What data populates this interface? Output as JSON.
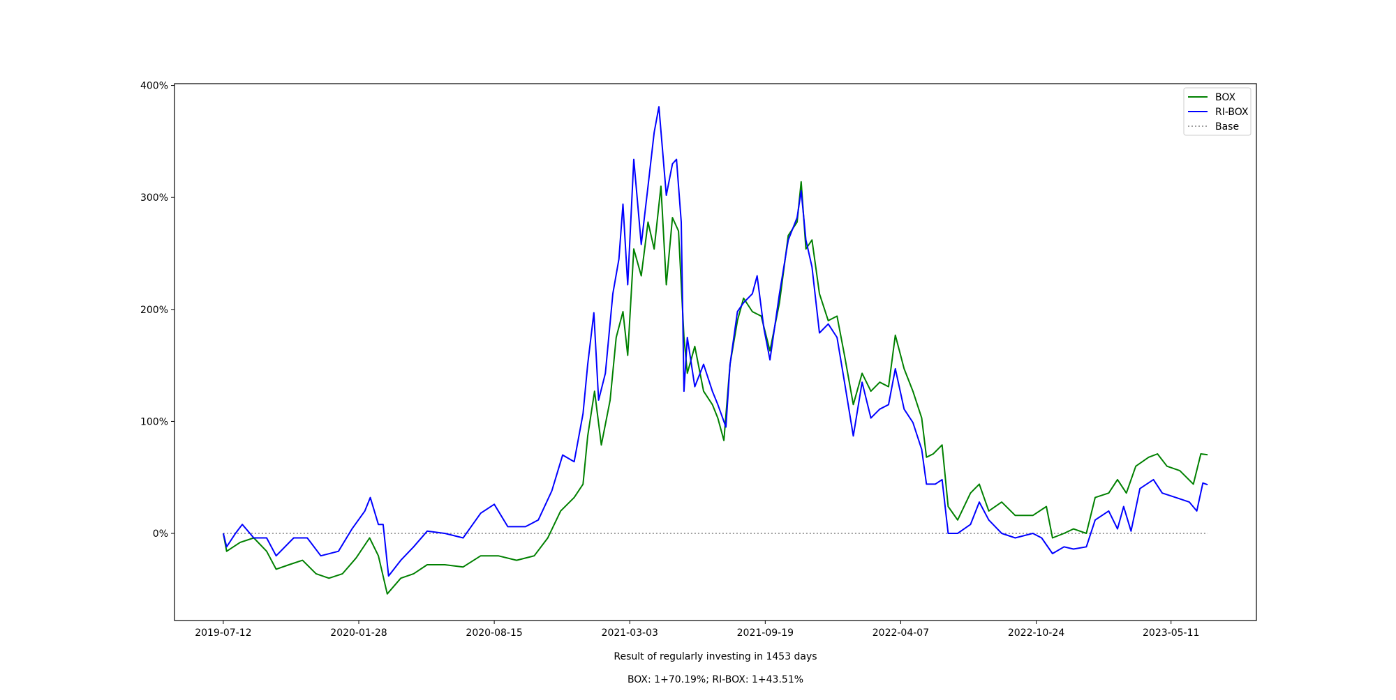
{
  "chart_data": {
    "type": "line",
    "title": "",
    "xlabel": "Result of regularly investing in 1453 days",
    "subtitle": "BOX: 1+70.19%; RI-BOX: 1+43.51%",
    "ylabel": "",
    "x_unit": "days since 2019-07-12",
    "xlim": [
      -72,
      1525
    ],
    "ylim": [
      -77.8,
      401.6
    ],
    "grid": false,
    "legend_position": "top-right",
    "x_ticks": [
      {
        "day": 0,
        "label": "2019-07-12"
      },
      {
        "day": 200,
        "label": "2020-01-28"
      },
      {
        "day": 400,
        "label": "2020-08-15"
      },
      {
        "day": 600,
        "label": "2021-03-03"
      },
      {
        "day": 800,
        "label": "2021-09-19"
      },
      {
        "day": 1000,
        "label": "2022-04-07"
      },
      {
        "day": 1200,
        "label": "2022-10-24"
      },
      {
        "day": 1399,
        "label": "2023-05-11"
      }
    ],
    "y_ticks": [
      {
        "value": 0,
        "label": "0%"
      },
      {
        "value": 100,
        "label": "100%"
      },
      {
        "value": 200,
        "label": "200%"
      },
      {
        "value": 300,
        "label": "300%"
      },
      {
        "value": 400,
        "label": "400%"
      }
    ],
    "series": [
      {
        "name": "BOX",
        "color": "#008000",
        "style": "solid",
        "points": [
          [
            0,
            0
          ],
          [
            5,
            -16
          ],
          [
            25,
            -8
          ],
          [
            45,
            -4
          ],
          [
            64,
            -16
          ],
          [
            78,
            -32
          ],
          [
            97,
            -28
          ],
          [
            117,
            -24
          ],
          [
            137,
            -36
          ],
          [
            156,
            -40
          ],
          [
            176,
            -36
          ],
          [
            196,
            -22
          ],
          [
            216,
            -4
          ],
          [
            229,
            -20
          ],
          [
            242,
            -54
          ],
          [
            262,
            -40
          ],
          [
            281,
            -36
          ],
          [
            301,
            -28
          ],
          [
            327,
            -28
          ],
          [
            354,
            -30
          ],
          [
            380,
            -20
          ],
          [
            406,
            -20
          ],
          [
            433,
            -24
          ],
          [
            459,
            -20
          ],
          [
            479,
            -4
          ],
          [
            498,
            20
          ],
          [
            518,
            32
          ],
          [
            531,
            44
          ],
          [
            538,
            87
          ],
          [
            548,
            127
          ],
          [
            558,
            79
          ],
          [
            571,
            119
          ],
          [
            580,
            175
          ],
          [
            590,
            198
          ],
          [
            597,
            159
          ],
          [
            606,
            254
          ],
          [
            617,
            230
          ],
          [
            627,
            278
          ],
          [
            636,
            254
          ],
          [
            646,
            310
          ],
          [
            654,
            222
          ],
          [
            663,
            282
          ],
          [
            672,
            270
          ],
          [
            680,
            175
          ],
          [
            685,
            143
          ],
          [
            696,
            167
          ],
          [
            709,
            127
          ],
          [
            722,
            115
          ],
          [
            730,
            103
          ],
          [
            739,
            83
          ],
          [
            748,
            151
          ],
          [
            759,
            190
          ],
          [
            768,
            210
          ],
          [
            781,
            198
          ],
          [
            794,
            194
          ],
          [
            807,
            163
          ],
          [
            821,
            206
          ],
          [
            834,
            266
          ],
          [
            847,
            278
          ],
          [
            853,
            314
          ],
          [
            860,
            254
          ],
          [
            869,
            262
          ],
          [
            880,
            214
          ],
          [
            893,
            190
          ],
          [
            906,
            194
          ],
          [
            917,
            159
          ],
          [
            930,
            115
          ],
          [
            943,
            143
          ],
          [
            956,
            127
          ],
          [
            969,
            135
          ],
          [
            982,
            131
          ],
          [
            992,
            177
          ],
          [
            1005,
            147
          ],
          [
            1018,
            127
          ],
          [
            1031,
            103
          ],
          [
            1038,
            68
          ],
          [
            1048,
            71
          ],
          [
            1061,
            79
          ],
          [
            1070,
            24
          ],
          [
            1084,
            12
          ],
          [
            1103,
            36
          ],
          [
            1116,
            44
          ],
          [
            1130,
            20
          ],
          [
            1149,
            28
          ],
          [
            1169,
            16
          ],
          [
            1195,
            16
          ],
          [
            1215,
            24
          ],
          [
            1224,
            -4
          ],
          [
            1241,
            0
          ],
          [
            1255,
            4
          ],
          [
            1274,
            0
          ],
          [
            1287,
            32
          ],
          [
            1307,
            36
          ],
          [
            1320,
            48
          ],
          [
            1333,
            36
          ],
          [
            1347,
            60
          ],
          [
            1366,
            68
          ],
          [
            1379,
            71
          ],
          [
            1393,
            60
          ],
          [
            1412,
            56
          ],
          [
            1432,
            44
          ],
          [
            1443,
            71
          ],
          [
            1453,
            70.19
          ]
        ]
      },
      {
        "name": "RI-BOX",
        "color": "#0000ff",
        "style": "solid",
        "points": [
          [
            0,
            0
          ],
          [
            5,
            -12
          ],
          [
            18,
            0
          ],
          [
            28,
            8
          ],
          [
            45,
            -4
          ],
          [
            64,
            -4
          ],
          [
            78,
            -20
          ],
          [
            104,
            -4
          ],
          [
            124,
            -4
          ],
          [
            144,
            -20
          ],
          [
            170,
            -16
          ],
          [
            190,
            4
          ],
          [
            209,
            20
          ],
          [
            217,
            32
          ],
          [
            229,
            8
          ],
          [
            236,
            8
          ],
          [
            244,
            -38
          ],
          [
            262,
            -24
          ],
          [
            281,
            -12
          ],
          [
            301,
            2
          ],
          [
            327,
            0
          ],
          [
            354,
            -4
          ],
          [
            380,
            18
          ],
          [
            400,
            26
          ],
          [
            420,
            6
          ],
          [
            446,
            6
          ],
          [
            465,
            12
          ],
          [
            485,
            38
          ],
          [
            501,
            70
          ],
          [
            518,
            64
          ],
          [
            531,
            107
          ],
          [
            538,
            151
          ],
          [
            547,
            197
          ],
          [
            554,
            119
          ],
          [
            564,
            143
          ],
          [
            575,
            214
          ],
          [
            584,
            245
          ],
          [
            590,
            294
          ],
          [
            597,
            222
          ],
          [
            606,
            334
          ],
          [
            617,
            258
          ],
          [
            627,
            310
          ],
          [
            636,
            358
          ],
          [
            643,
            381
          ],
          [
            654,
            302
          ],
          [
            663,
            330
          ],
          [
            669,
            334
          ],
          [
            676,
            278
          ],
          [
            680,
            127
          ],
          [
            685,
            175
          ],
          [
            696,
            131
          ],
          [
            709,
            151
          ],
          [
            722,
            127
          ],
          [
            730,
            115
          ],
          [
            742,
            95
          ],
          [
            748,
            151
          ],
          [
            759,
            198
          ],
          [
            768,
            206
          ],
          [
            781,
            214
          ],
          [
            788,
            230
          ],
          [
            798,
            183
          ],
          [
            807,
            155
          ],
          [
            821,
            214
          ],
          [
            834,
            262
          ],
          [
            847,
            282
          ],
          [
            853,
            306
          ],
          [
            860,
            262
          ],
          [
            869,
            238
          ],
          [
            880,
            179
          ],
          [
            893,
            187
          ],
          [
            906,
            175
          ],
          [
            917,
            135
          ],
          [
            930,
            87
          ],
          [
            943,
            135
          ],
          [
            956,
            103
          ],
          [
            969,
            111
          ],
          [
            982,
            115
          ],
          [
            992,
            147
          ],
          [
            1005,
            111
          ],
          [
            1018,
            99
          ],
          [
            1031,
            75
          ],
          [
            1038,
            44
          ],
          [
            1051,
            44
          ],
          [
            1061,
            48
          ],
          [
            1070,
            0
          ],
          [
            1084,
            0
          ],
          [
            1103,
            8
          ],
          [
            1116,
            28
          ],
          [
            1130,
            12
          ],
          [
            1149,
            0
          ],
          [
            1169,
            -4
          ],
          [
            1195,
            0
          ],
          [
            1208,
            -4
          ],
          [
            1224,
            -18
          ],
          [
            1241,
            -12
          ],
          [
            1255,
            -14
          ],
          [
            1274,
            -12
          ],
          [
            1287,
            12
          ],
          [
            1307,
            20
          ],
          [
            1320,
            4
          ],
          [
            1329,
            24
          ],
          [
            1340,
            2
          ],
          [
            1353,
            40
          ],
          [
            1373,
            48
          ],
          [
            1386,
            36
          ],
          [
            1406,
            32
          ],
          [
            1426,
            28
          ],
          [
            1437,
            20
          ],
          [
            1446,
            45
          ],
          [
            1453,
            43.51
          ]
        ]
      },
      {
        "name": "Base",
        "color": "#808080",
        "style": "dotted",
        "points": [
          [
            0,
            0
          ],
          [
            1453,
            0
          ]
        ]
      }
    ]
  }
}
